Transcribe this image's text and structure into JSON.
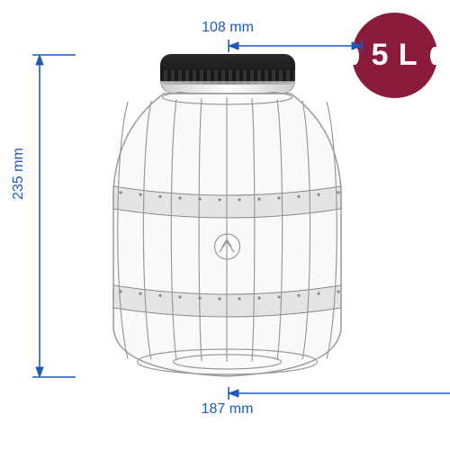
{
  "badge": {
    "text": "5 L",
    "bg": "#8a1b3d",
    "fg": "#ffffff"
  },
  "dim_color": "#1e5bb8",
  "dimensions": {
    "height": {
      "value": "235 mm"
    },
    "top_width": {
      "value": "108 mm"
    },
    "bottom_width": {
      "value": "187 mm"
    }
  },
  "jar": {
    "stroke": "#9a9a9a",
    "fill": "rgba(240,240,240,0.35)",
    "band_fill": "rgba(210,210,210,0.55)",
    "band_stroke": "#888888"
  }
}
